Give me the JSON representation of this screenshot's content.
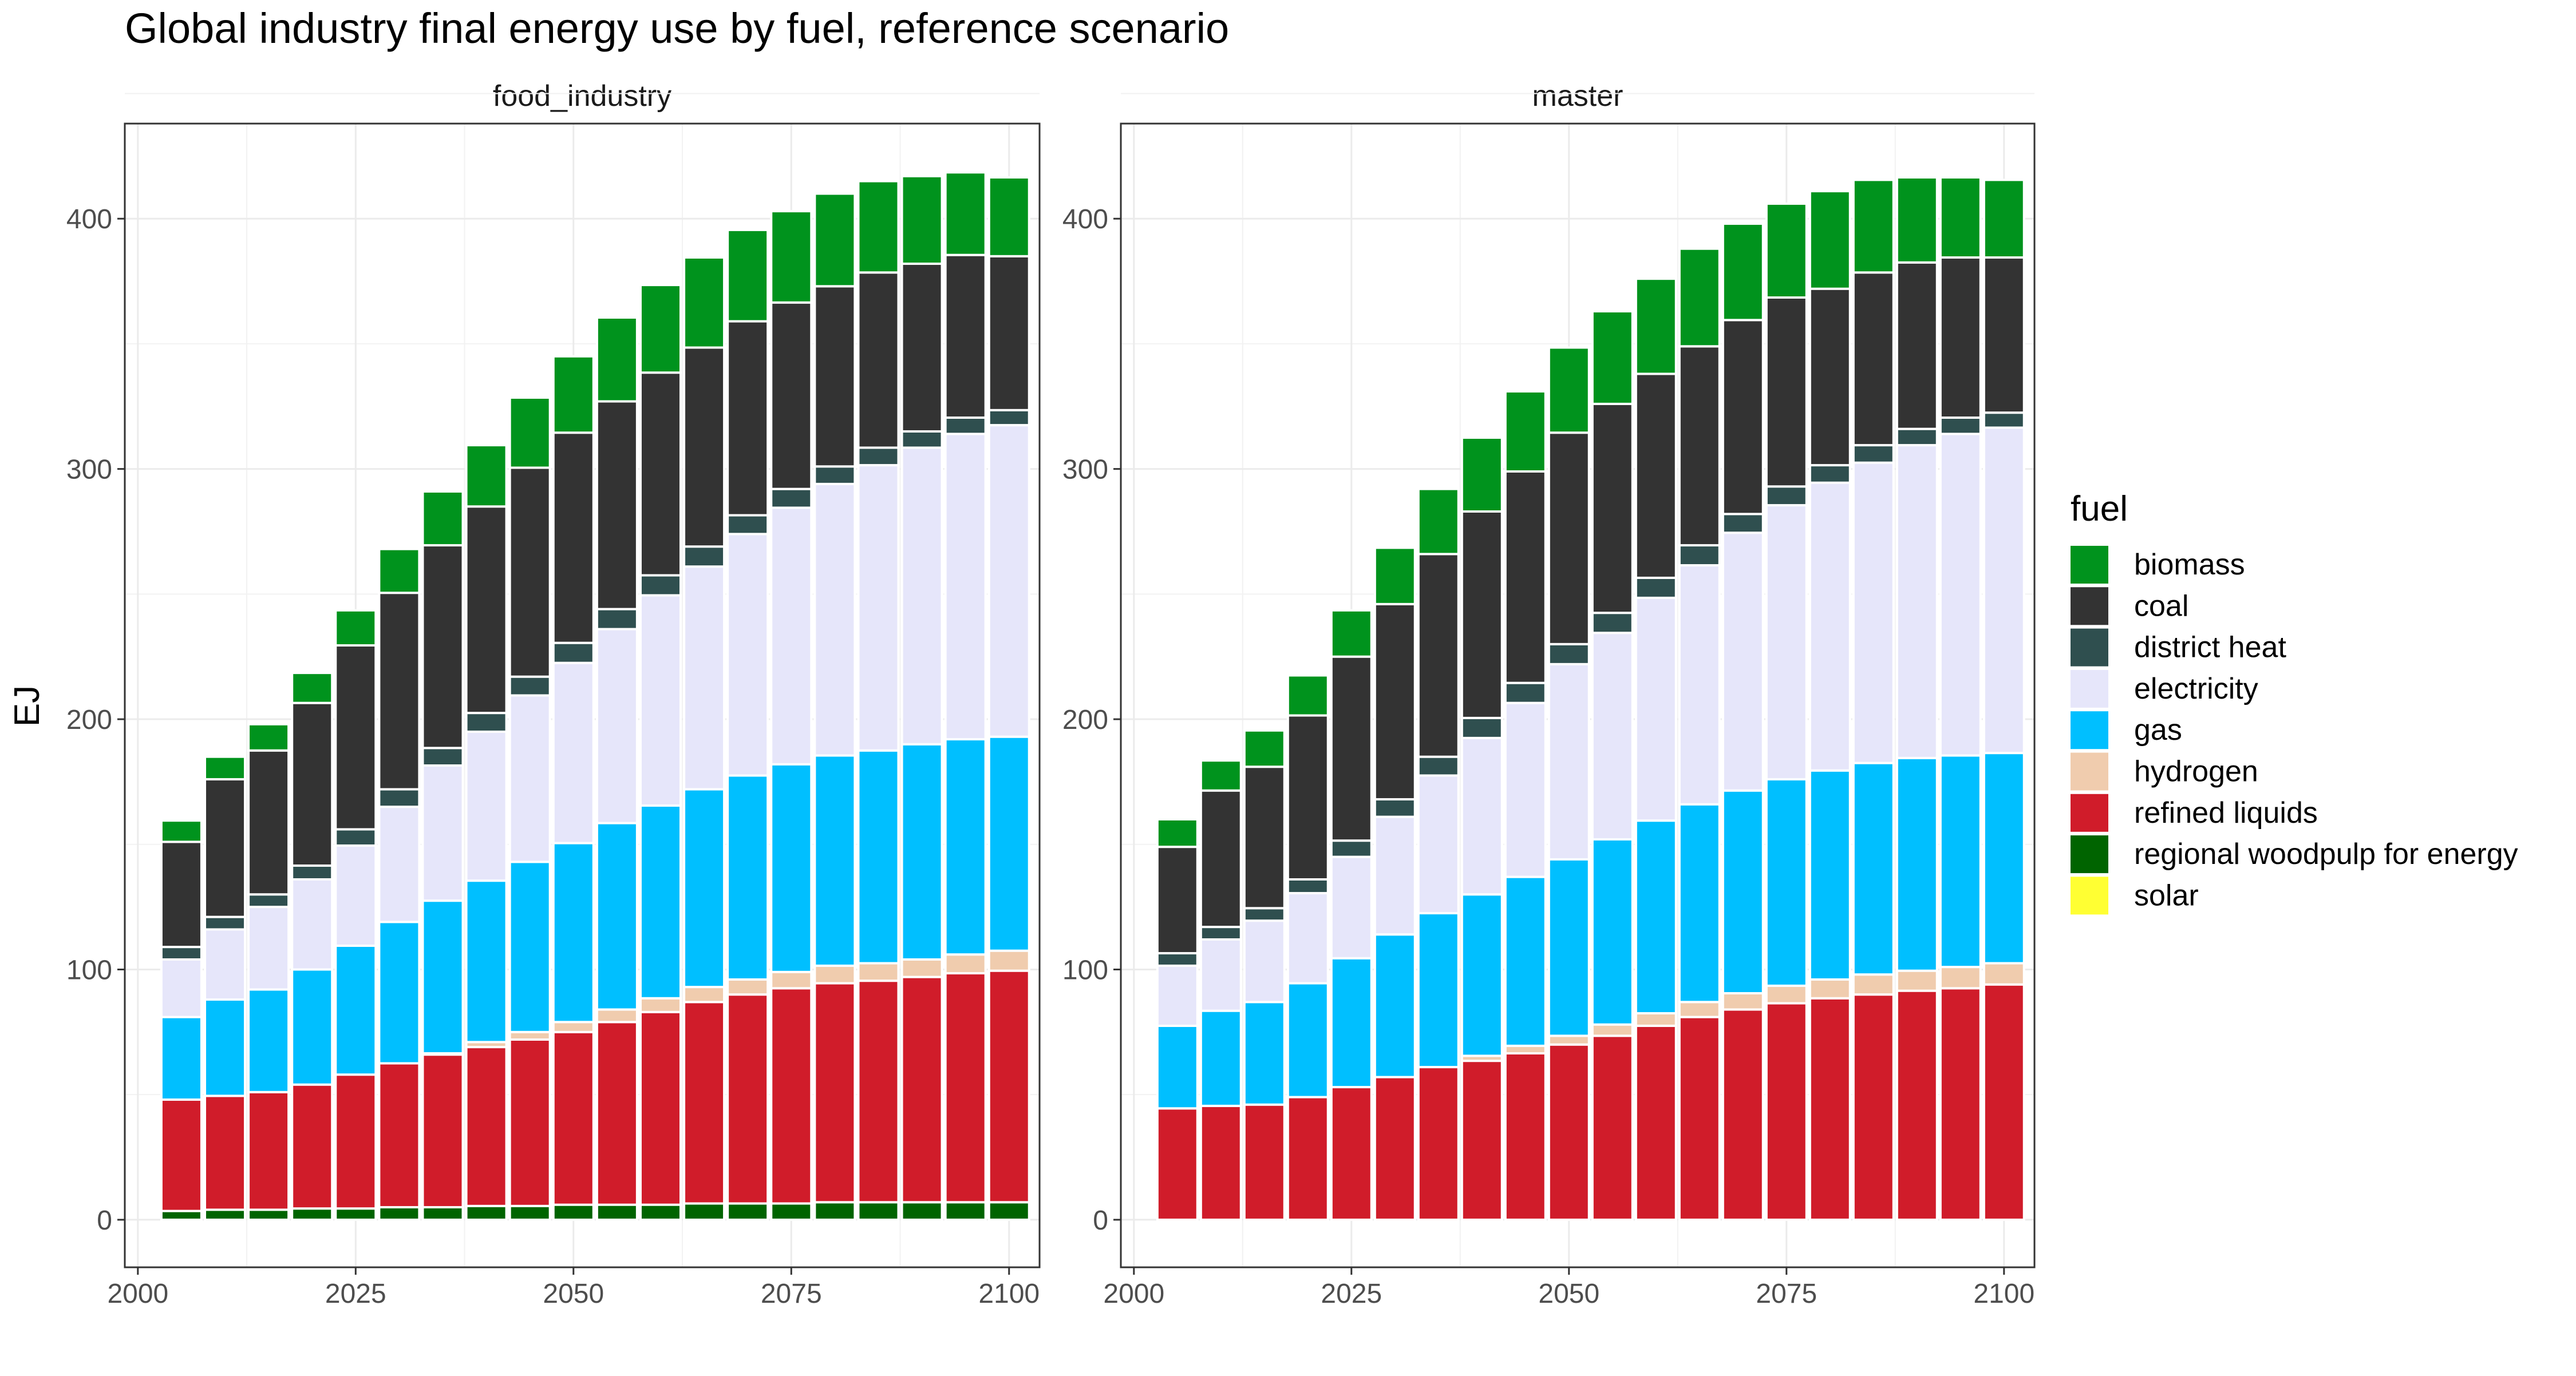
{
  "title": "Global industry final energy use by fuel, reference scenario",
  "ylabel": "EJ",
  "legend": {
    "title": "fuel",
    "placement": "right",
    "items": [
      {
        "name": "biomass",
        "color": "#00931D"
      },
      {
        "name": "coal",
        "color": "#333333"
      },
      {
        "name": "district heat",
        "color": "#2F4F4F"
      },
      {
        "name": "electricity",
        "color": "#E6E6FA"
      },
      {
        "name": "gas",
        "color": "#00BFFF"
      },
      {
        "name": "hydrogen",
        "color": "#F0CCAE"
      },
      {
        "name": "refined liquids",
        "color": "#D01C2A"
      },
      {
        "name": "regional woodpulp for energy",
        "color": "#006400"
      },
      {
        "name": "solar",
        "color": "#FFFF33"
      }
    ]
  },
  "chart_data": [
    {
      "type": "bar",
      "stacked": true,
      "panel_label": "food_industry",
      "x": [
        2005,
        2010,
        2015,
        2020,
        2025,
        2030,
        2035,
        2040,
        2045,
        2050,
        2055,
        2060,
        2065,
        2070,
        2075,
        2080,
        2085,
        2090,
        2095,
        2100
      ],
      "xticks": [
        2000,
        2025,
        2050,
        2075,
        2100
      ],
      "yticks": [
        0,
        100,
        200,
        300,
        400
      ],
      "xlim": [
        1998.5,
        2103.5
      ],
      "ylim": [
        -19,
        438
      ],
      "grid": true,
      "series": [
        {
          "name": "regional woodpulp for energy",
          "values": [
            3.5,
            4,
            4,
            4.5,
            4.5,
            5,
            5,
            5.5,
            5.5,
            6,
            6,
            6,
            6.5,
            6.5,
            6.5,
            7,
            7,
            7,
            7,
            7
          ]
        },
        {
          "name": "refined liquids",
          "values": [
            44.5,
            45.5,
            47,
            49.5,
            53.5,
            57.5,
            61,
            63.5,
            66.5,
            69,
            73,
            77,
            80.5,
            83.5,
            86,
            87.5,
            88.5,
            90,
            91.5,
            92.5
          ]
        },
        {
          "name": "hydrogen",
          "values": [
            0,
            0,
            0,
            0,
            0,
            0,
            0.5,
            2,
            3,
            4,
            5,
            5.5,
            6,
            6,
            6.5,
            7,
            7,
            7,
            7.5,
            8
          ]
        },
        {
          "name": "gas",
          "values": [
            33,
            38.5,
            41,
            46,
            51.5,
            56.5,
            61,
            64.5,
            68,
            71.5,
            74.5,
            77,
            79,
            81.5,
            83,
            84,
            85,
            86,
            86,
            85.5
          ]
        },
        {
          "name": "electricity",
          "values": [
            23,
            28,
            33,
            36,
            40,
            46,
            54,
            59.5,
            66.5,
            72,
            77.5,
            84,
            89,
            96.5,
            102.5,
            108.5,
            114,
            118.5,
            122,
            124.5
          ]
        },
        {
          "name": "district heat",
          "values": [
            5,
            5,
            5,
            5.5,
            6.5,
            7,
            7,
            7.5,
            7.5,
            8,
            8,
            8,
            8,
            7.5,
            7.5,
            7,
            7,
            6.5,
            6.5,
            6
          ]
        },
        {
          "name": "coal",
          "values": [
            42,
            55,
            57.5,
            65,
            73.5,
            78.5,
            81,
            82.5,
            83.5,
            84,
            83,
            81,
            79.5,
            77.5,
            74.5,
            72,
            70,
            67,
            65,
            61.5
          ]
        },
        {
          "name": "biomass",
          "values": [
            8.5,
            9,
            10.5,
            12,
            14,
            17.5,
            21.5,
            24.5,
            28,
            30.5,
            33.5,
            35,
            36,
            36.5,
            36.5,
            37,
            36.5,
            35,
            33,
            31.5
          ]
        },
        {
          "name": "solar",
          "values": [
            0,
            0,
            0,
            0,
            0,
            0,
            0,
            0,
            0,
            0,
            0,
            0,
            0,
            0,
            0,
            0,
            0,
            0,
            0,
            0
          ]
        }
      ]
    },
    {
      "type": "bar",
      "stacked": true,
      "panel_label": "master",
      "x": [
        2005,
        2010,
        2015,
        2020,
        2025,
        2030,
        2035,
        2040,
        2045,
        2050,
        2055,
        2060,
        2065,
        2070,
        2075,
        2080,
        2085,
        2090,
        2095,
        2100
      ],
      "xticks": [
        2000,
        2025,
        2050,
        2075,
        2100
      ],
      "yticks": [
        0,
        100,
        200,
        300,
        400
      ],
      "xlim": [
        1998.5,
        2103.5
      ],
      "ylim": [
        -19,
        438
      ],
      "grid": true,
      "series": [
        {
          "name": "regional woodpulp for energy",
          "values": [
            0,
            0,
            0,
            0,
            0,
            0,
            0,
            0,
            0,
            0,
            0,
            0,
            0,
            0,
            0,
            0,
            0,
            0,
            0,
            0
          ]
        },
        {
          "name": "refined liquids",
          "values": [
            44.5,
            45.5,
            46,
            49,
            53,
            57,
            61,
            63.5,
            66.5,
            70,
            73.5,
            77.5,
            81,
            84,
            86.5,
            88.5,
            90,
            91.5,
            92.5,
            94
          ]
        },
        {
          "name": "hydrogen",
          "values": [
            0,
            0,
            0,
            0,
            0,
            0,
            0,
            2,
            3,
            3.5,
            4.5,
            5,
            6,
            6.5,
            7,
            7.5,
            8,
            8,
            8.5,
            8.5
          ]
        },
        {
          "name": "gas",
          "values": [
            33,
            38,
            41,
            45.5,
            51.5,
            57,
            61.5,
            64.5,
            67.5,
            70.5,
            74,
            77,
            79,
            81,
            82.5,
            83.5,
            84.5,
            85,
            84.5,
            84
          ]
        },
        {
          "name": "electricity",
          "values": [
            24,
            28.5,
            32.5,
            36,
            40.5,
            47,
            55,
            62.5,
            69.5,
            78,
            82.5,
            89,
            95.5,
            103,
            109.5,
            115,
            120,
            125,
            128.5,
            130
          ]
        },
        {
          "name": "district heat",
          "values": [
            5,
            5,
            5,
            5.5,
            6.5,
            7,
            7.5,
            8,
            8,
            8,
            8,
            8,
            8,
            7.5,
            7.5,
            7,
            7,
            6.5,
            6.5,
            6
          ]
        },
        {
          "name": "coal",
          "values": [
            42.5,
            54.5,
            56.5,
            65.5,
            73.5,
            78,
            81,
            82.5,
            84.5,
            84.5,
            83.5,
            81.5,
            79.5,
            77.5,
            75.5,
            70.5,
            69,
            66.5,
            64,
            62
          ]
        },
        {
          "name": "biomass",
          "values": [
            11,
            12,
            14.5,
            16,
            18.5,
            22.5,
            26,
            29.5,
            32,
            34,
            37,
            38,
            39,
            38.5,
            37.5,
            39,
            37,
            34,
            32,
            31
          ]
        },
        {
          "name": "solar",
          "values": [
            0,
            0,
            0,
            0,
            0,
            0,
            0,
            0,
            0,
            0,
            0,
            0,
            0,
            0,
            0,
            0,
            0,
            0,
            0,
            0
          ]
        }
      ]
    }
  ]
}
